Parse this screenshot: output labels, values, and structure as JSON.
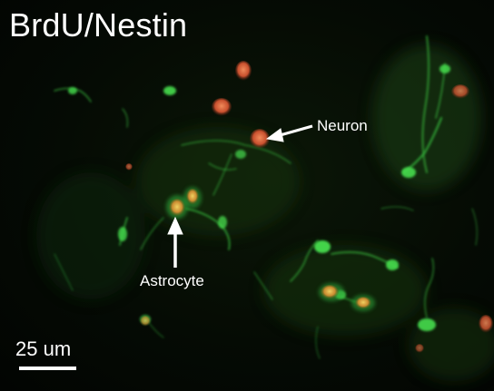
{
  "title": "BrdU/Nestin",
  "annotations": {
    "neuron_label": "Neuron",
    "astrocyte_label": "Astrocyte"
  },
  "scale_bar": {
    "label": "25 um"
  },
  "colors": {
    "background": "#050b04",
    "nestin_stain": "#3fd64a",
    "brdu_stain": "#d8603a",
    "text": "#ffffff"
  }
}
